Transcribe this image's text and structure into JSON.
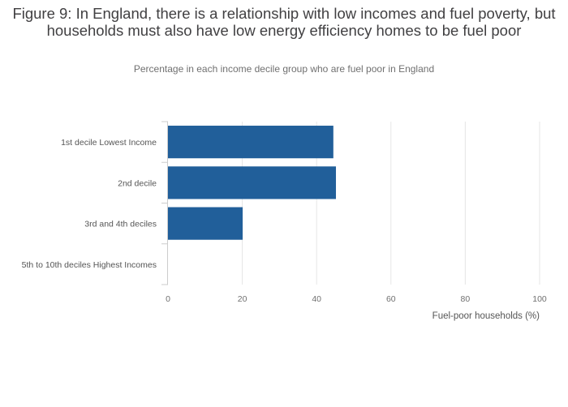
{
  "chart_data": {
    "type": "bar",
    "orientation": "horizontal",
    "title": "Figure 9: In England, there is a relationship with low incomes and fuel poverty, but households must also have low energy efficiency homes to be fuel poor",
    "subtitle": "Percentage in each income decile group who are fuel poor in England",
    "categories": [
      "1st decile Lowest Income",
      "2nd decile",
      "3rd and 4th deciles",
      "5th to 10th deciles Highest Incomes"
    ],
    "values": [
      44.5,
      45.2,
      20.1,
      0
    ],
    "xlabel": "Fuel-poor households (%)",
    "ylabel": "",
    "xlim": [
      0,
      100
    ],
    "xticks": [
      "0",
      "20",
      "40",
      "60",
      "80",
      "100"
    ],
    "grid": true,
    "legend": "none",
    "bar_color": "#215f9a",
    "grid_color": "#e6e6e6",
    "axis_color": "#cccccc"
  }
}
